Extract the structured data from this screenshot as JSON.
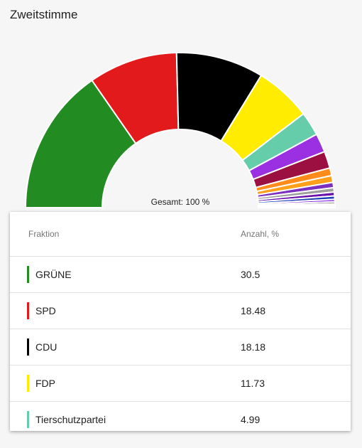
{
  "chart_data": {
    "type": "pie",
    "subtype": "semi-donut",
    "title": "Zweitstimme",
    "center_label": "Gesamt: 100 %",
    "slices": [
      {
        "name": "GRÜNE",
        "value": 30.5,
        "color": "#228b22"
      },
      {
        "name": "SPD",
        "value": 18.48,
        "color": "#e31a1c"
      },
      {
        "name": "CDU",
        "value": 18.18,
        "color": "#000000"
      },
      {
        "name": "FDP",
        "value": 11.73,
        "color": "#ffec00"
      },
      {
        "name": "Tierschutzpartei",
        "value": 4.99,
        "color": "#66cdaa"
      },
      {
        "value": 3.9,
        "color": "#9b30e3"
      },
      {
        "value": 3.5,
        "color": "#9b1040"
      },
      {
        "value": 1.6,
        "color": "#ff8c1a"
      },
      {
        "value": 1.4,
        "color": "#ff9f1a"
      },
      {
        "value": 1.1,
        "color": "#7b2fbe"
      },
      {
        "value": 0.9,
        "color": "#9e9e9e"
      },
      {
        "value": 0.8,
        "color": "#6a0dad"
      },
      {
        "value": 0.7,
        "color": "#1f3fb5"
      },
      {
        "value": 0.5,
        "color": "#8a2be2"
      },
      {
        "value": 0.4,
        "color": "#555555"
      },
      {
        "value": 0.3,
        "color": "#ff6347"
      },
      {
        "value": 0.3,
        "color": "#4b0082"
      },
      {
        "value": 0.2,
        "color": "#cccccc"
      }
    ]
  },
  "table": {
    "header_party": "Fraktion",
    "header_value": "Anzahl, %",
    "rows": [
      {
        "party": "GRÜNE",
        "value": "30.5",
        "color": "#228b22"
      },
      {
        "party": "SPD",
        "value": "18.48",
        "color": "#e31a1c"
      },
      {
        "party": "CDU",
        "value": "18.18",
        "color": "#000000"
      },
      {
        "party": "FDP",
        "value": "11.73",
        "color": "#ffec00"
      },
      {
        "party": "Tierschutzpartei",
        "value": "4.99",
        "color": "#66cdaa"
      }
    ]
  }
}
